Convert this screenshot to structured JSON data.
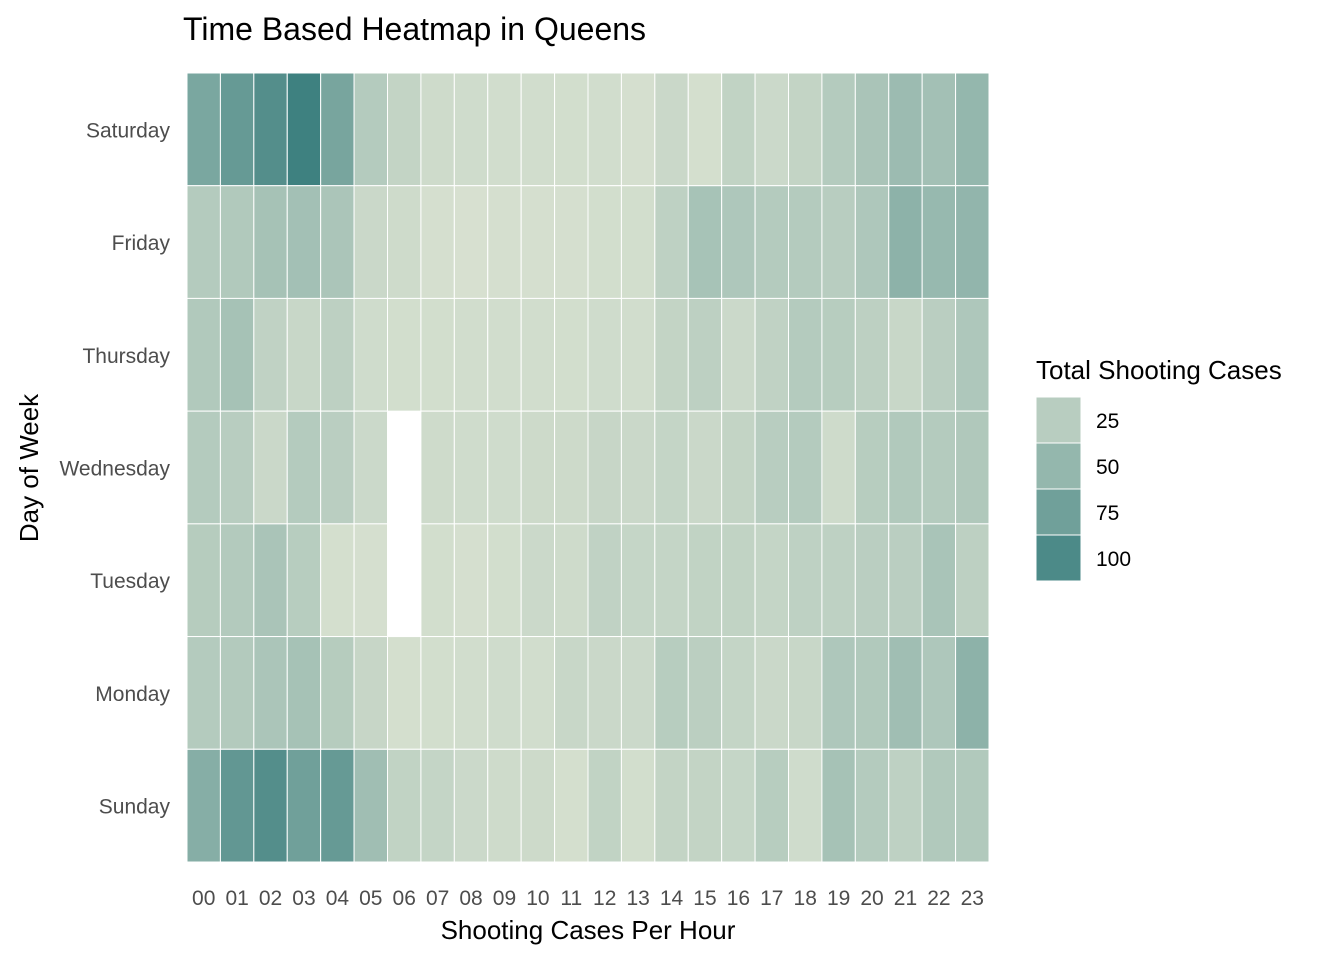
{
  "chart_data": {
    "type": "heatmap",
    "title": "Time Based Heatmap in Queens",
    "xlabel": "Shooting Cases Per Hour",
    "ylabel": "Day of Week",
    "x_categories": [
      "00",
      "01",
      "02",
      "03",
      "04",
      "05",
      "06",
      "07",
      "08",
      "09",
      "10",
      "11",
      "12",
      "13",
      "14",
      "15",
      "16",
      "17",
      "18",
      "19",
      "20",
      "21",
      "22",
      "23"
    ],
    "y_categories": [
      "Saturday",
      "Friday",
      "Thursday",
      "Wednesday",
      "Tuesday",
      "Monday",
      "Sunday"
    ],
    "values": [
      [
        68,
        82,
        95,
        110,
        70,
        28,
        18,
        10,
        9,
        8,
        8,
        7,
        8,
        5,
        13,
        6,
        19,
        12,
        18,
        28,
        35,
        45,
        40,
        50
      ],
      [
        28,
        30,
        38,
        40,
        34,
        13,
        10,
        5,
        4,
        5,
        5,
        5,
        7,
        7,
        21,
        37,
        32,
        28,
        28,
        25,
        32,
        55,
        48,
        52
      ],
      [
        30,
        38,
        20,
        14,
        22,
        9,
        7,
        7,
        8,
        8,
        8,
        7,
        9,
        8,
        18,
        22,
        12,
        20,
        28,
        26,
        22,
        14,
        24,
        32
      ],
      [
        28,
        25,
        13,
        28,
        24,
        12,
        null,
        10,
        9,
        9,
        11,
        11,
        15,
        13,
        17,
        13,
        18,
        25,
        28,
        10,
        26,
        30,
        28,
        31
      ],
      [
        27,
        29,
        35,
        26,
        6,
        5,
        null,
        7,
        5,
        7,
        12,
        10,
        20,
        16,
        17,
        19,
        19,
        17,
        21,
        21,
        24,
        24,
        36,
        22
      ],
      [
        28,
        29,
        34,
        38,
        27,
        15,
        6,
        7,
        8,
        9,
        8,
        14,
        13,
        12,
        26,
        23,
        17,
        13,
        14,
        32,
        30,
        42,
        32,
        55
      ],
      [
        60,
        85,
        95,
        75,
        82,
        42,
        19,
        17,
        12,
        10,
        11,
        6,
        19,
        7,
        18,
        18,
        16,
        26,
        9,
        38,
        28,
        21,
        30,
        30
      ]
    ],
    "zlim": [
      1,
      110
    ],
    "color_low": "#dbe3d2",
    "color_high": "#3e8180",
    "legend": {
      "title": "Total Shooting Cases",
      "breaks": [
        25,
        50,
        75,
        100
      ],
      "position": "right"
    },
    "grid": false
  }
}
